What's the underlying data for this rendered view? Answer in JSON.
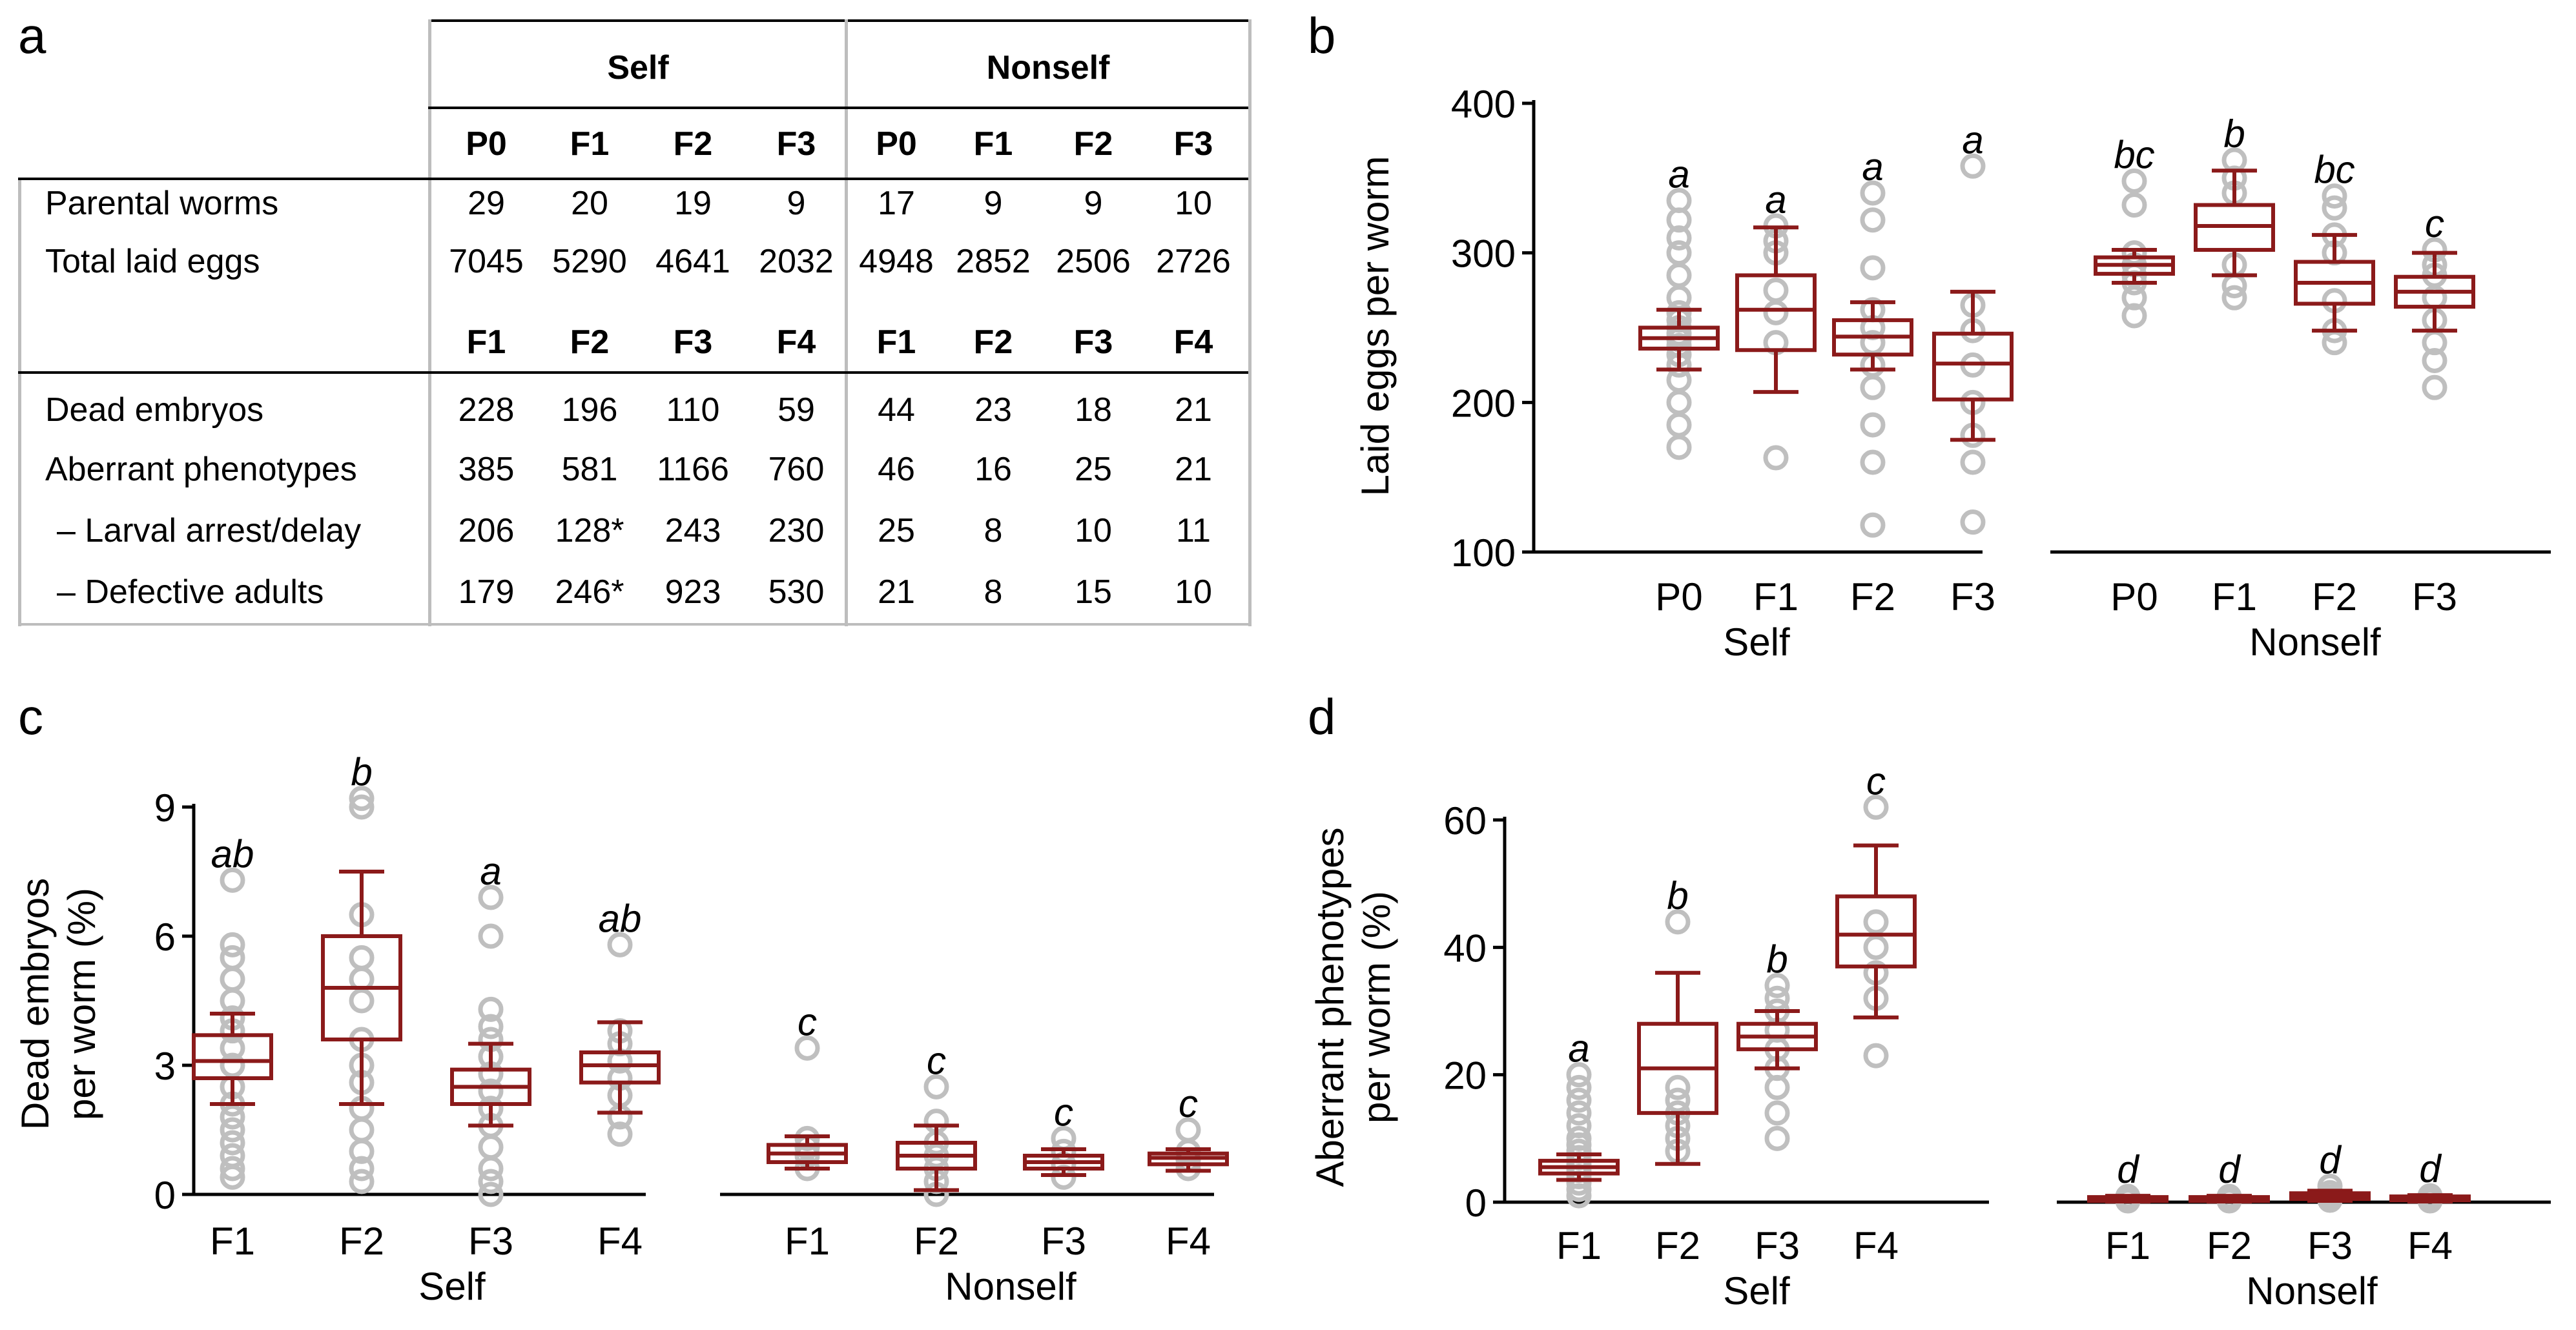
{
  "panels": {
    "a": "a",
    "b": "b",
    "c": "c",
    "d": "d"
  },
  "table": {
    "groups": [
      "Self",
      "Nonself"
    ],
    "gen_header_1": [
      "P0",
      "F1",
      "F2",
      "F3",
      "P0",
      "F1",
      "F2",
      "F3"
    ],
    "gen_header_2": [
      "F1",
      "F2",
      "F3",
      "F4",
      "F1",
      "F2",
      "F3",
      "F4"
    ],
    "rows_top": [
      {
        "label": "Parental worms",
        "values": [
          "29",
          "20",
          "19",
          "9",
          "17",
          "9",
          "9",
          "10"
        ]
      },
      {
        "label": "Total laid eggs",
        "values": [
          "7045",
          "5290",
          "4641",
          "2032",
          "4948",
          "2852",
          "2506",
          "2726"
        ]
      }
    ],
    "rows_bottom": [
      {
        "label": "Dead embryos",
        "values": [
          "228",
          "196",
          "110",
          "59",
          "44",
          "23",
          "18",
          "21"
        ]
      },
      {
        "label": "Aberrant phenotypes",
        "values": [
          "385",
          "581",
          "1166",
          "760",
          "46",
          "16",
          "25",
          "21"
        ]
      },
      {
        "label": "–  Larval arrest/delay",
        "values": [
          "206",
          "128*",
          "243",
          "230",
          "25",
          "8",
          "10",
          "11"
        ]
      },
      {
        "label": "–  Defective adults",
        "values": [
          "179",
          "246*",
          "923",
          "530",
          "21",
          "8",
          "15",
          "10"
        ]
      }
    ]
  },
  "colors": {
    "box": "#8b1a1a",
    "points": "#bfbfbf",
    "axis": "#000000",
    "table_rule": "#bdbdbd"
  },
  "chart_data": [
    {
      "type": "boxplot",
      "panel": "b",
      "ylabel": "Laid eggs per worm",
      "ylim": [
        100,
        400
      ],
      "yticks": [
        100,
        200,
        300,
        400
      ],
      "groups": [
        {
          "name": "Self",
          "categories": [
            "P0",
            "F1",
            "F2",
            "F3"
          ],
          "boxes": [
            {
              "q1": 236,
              "median": 243,
              "q3": 250,
              "whisker_low": 222,
              "whisker_high": 262,
              "letter": "a",
              "points": [
                170,
                185,
                200,
                215,
                225,
                232,
                238,
                242,
                246,
                250,
                255,
                260,
                270,
                285,
                300,
                310,
                322,
                335
              ]
            },
            {
              "q1": 235,
              "median": 262,
              "q3": 285,
              "whisker_low": 207,
              "whisker_high": 317,
              "letter": "a",
              "points": [
                163,
                240,
                260,
                275,
                300,
                308,
                318
              ]
            },
            {
              "q1": 232,
              "median": 244,
              "q3": 255,
              "whisker_low": 222,
              "whisker_high": 267,
              "letter": "a",
              "points": [
                118,
                160,
                185,
                210,
                225,
                240,
                250,
                262,
                290,
                322,
                340
              ]
            },
            {
              "q1": 202,
              "median": 226,
              "q3": 246,
              "whisker_low": 175,
              "whisker_high": 274,
              "letter": "a",
              "points": [
                120,
                160,
                178,
                200,
                225,
                248,
                265,
                358
              ]
            }
          ]
        },
        {
          "name": "Nonself",
          "categories": [
            "P0",
            "F1",
            "F2",
            "F3"
          ],
          "boxes": [
            {
              "q1": 286,
              "median": 292,
              "q3": 297,
              "whisker_low": 280,
              "whisker_high": 302,
              "letter": "bc",
              "points": [
                258,
                270,
                280,
                285,
                292,
                300,
                332,
                348
              ]
            },
            {
              "q1": 302,
              "median": 318,
              "q3": 332,
              "whisker_low": 285,
              "whisker_high": 355,
              "letter": "b",
              "points": [
                270,
                278,
                292,
                340,
                350,
                362
              ]
            },
            {
              "q1": 266,
              "median": 280,
              "q3": 294,
              "whisker_low": 248,
              "whisker_high": 312,
              "letter": "bc",
              "points": [
                240,
                248,
                268,
                300,
                312,
                330,
                338
              ]
            },
            {
              "q1": 264,
              "median": 274,
              "q3": 284,
              "whisker_low": 248,
              "whisker_high": 300,
              "letter": "c",
              "points": [
                210,
                228,
                240,
                255,
                270,
                285,
                292,
                302
              ]
            }
          ]
        }
      ],
      "group_labels": [
        "Self",
        "Nonself"
      ]
    },
    {
      "type": "boxplot",
      "panel": "c",
      "ylabel": [
        "Dead embryos",
        "per worm (%)"
      ],
      "ylim": [
        0,
        9
      ],
      "yticks": [
        0,
        3,
        6,
        9
      ],
      "groups": [
        {
          "name": "Self",
          "categories": [
            "F1",
            "F2",
            "F3",
            "F4"
          ],
          "boxes": [
            {
              "q1": 2.7,
              "median": 3.1,
              "q3": 3.7,
              "whisker_low": 2.1,
              "whisker_high": 4.2,
              "letter": "ab",
              "points": [
                0.4,
                0.6,
                0.9,
                1.2,
                1.5,
                1.8,
                2.1,
                2.5,
                3.0,
                3.4,
                3.8,
                4.1,
                4.5,
                5.0,
                5.5,
                5.8,
                7.3
              ]
            },
            {
              "q1": 3.6,
              "median": 4.8,
              "q3": 6.0,
              "whisker_low": 2.1,
              "whisker_high": 7.5,
              "letter": "b",
              "points": [
                0.3,
                0.6,
                1.0,
                1.5,
                2.0,
                2.6,
                3.0,
                3.6,
                4.5,
                5.0,
                5.5,
                6.5,
                9.0,
                9.2
              ]
            },
            {
              "q1": 2.1,
              "median": 2.5,
              "q3": 2.9,
              "whisker_low": 1.6,
              "whisker_high": 3.5,
              "letter": "a",
              "points": [
                0.0,
                0.3,
                0.6,
                1.1,
                1.6,
                2.0,
                2.4,
                2.8,
                3.2,
                3.6,
                3.9,
                4.3,
                6.0,
                6.9
              ]
            },
            {
              "q1": 2.6,
              "median": 3.0,
              "q3": 3.3,
              "whisker_low": 1.9,
              "whisker_high": 4.0,
              "letter": "ab",
              "points": [
                1.4,
                1.8,
                2.3,
                2.7,
                3.1,
                3.5,
                3.8,
                5.8
              ]
            }
          ]
        },
        {
          "name": "Nonself",
          "categories": [
            "F1",
            "F2",
            "F3",
            "F4"
          ],
          "boxes": [
            {
              "q1": 0.75,
              "median": 0.95,
              "q3": 1.15,
              "whisker_low": 0.6,
              "whisker_high": 1.35,
              "letter": "c",
              "points": [
                0.6,
                0.9,
                1.1,
                1.3,
                3.4
              ]
            },
            {
              "q1": 0.6,
              "median": 0.9,
              "q3": 1.2,
              "whisker_low": 0.1,
              "whisker_high": 1.6,
              "letter": "c",
              "points": [
                0.0,
                0.3,
                0.6,
                0.9,
                1.2,
                1.7,
                2.5
              ]
            },
            {
              "q1": 0.6,
              "median": 0.75,
              "q3": 0.9,
              "whisker_low": 0.45,
              "whisker_high": 1.05,
              "letter": "c",
              "points": [
                0.4,
                0.7,
                1.0,
                1.3
              ]
            },
            {
              "q1": 0.7,
              "median": 0.85,
              "q3": 0.95,
              "whisker_low": 0.55,
              "whisker_high": 1.05,
              "letter": "c",
              "points": [
                0.6,
                0.8,
                1.0,
                1.5
              ]
            }
          ]
        }
      ],
      "group_labels": [
        "Self",
        "Nonself"
      ]
    },
    {
      "type": "boxplot",
      "panel": "d",
      "ylabel": [
        "Aberrant phenotypes",
        "per worm (%)"
      ],
      "ylim": [
        0,
        60
      ],
      "yticks": [
        0,
        20,
        40,
        60
      ],
      "groups": [
        {
          "name": "Self",
          "categories": [
            "F1",
            "F2",
            "F3",
            "F4"
          ],
          "boxes": [
            {
              "q1": 4.5,
              "median": 5.5,
              "q3": 6.5,
              "whisker_low": 3.5,
              "whisker_high": 7.5,
              "letter": "a",
              "points": [
                1,
                2,
                3,
                4,
                5,
                6,
                7,
                8,
                9,
                10,
                12,
                14,
                16,
                18,
                20
              ]
            },
            {
              "q1": 14,
              "median": 21,
              "q3": 28,
              "whisker_low": 6,
              "whisker_high": 36,
              "letter": "b",
              "points": [
                8,
                10,
                12,
                14,
                16,
                18,
                44
              ]
            },
            {
              "q1": 24,
              "median": 26,
              "q3": 28,
              "whisker_low": 21,
              "whisker_high": 30,
              "letter": "b",
              "points": [
                10,
                14,
                18,
                21,
                24,
                27,
                30,
                32,
                34
              ]
            },
            {
              "q1": 37,
              "median": 42,
              "q3": 48,
              "whisker_low": 29,
              "whisker_high": 56,
              "letter": "c",
              "points": [
                23,
                32,
                36,
                40,
                44,
                62
              ]
            }
          ]
        },
        {
          "name": "Nonself",
          "categories": [
            "F1",
            "F2",
            "F3",
            "F4"
          ],
          "boxes": [
            {
              "q1": 0.3,
              "median": 0.5,
              "q3": 0.8,
              "whisker_low": 0.1,
              "whisker_high": 1.0,
              "letter": "d",
              "points": [
                0.2,
                0.5,
                0.9
              ]
            },
            {
              "q1": 0.3,
              "median": 0.5,
              "q3": 0.8,
              "whisker_low": 0.1,
              "whisker_high": 1.0,
              "letter": "d",
              "points": [
                0.2,
                0.5,
                0.9
              ]
            },
            {
              "q1": 0.5,
              "median": 0.9,
              "q3": 1.4,
              "whisker_low": 0.2,
              "whisker_high": 1.8,
              "letter": "d",
              "points": [
                0.3,
                0.8,
                1.5,
                2.5
              ]
            },
            {
              "q1": 0.3,
              "median": 0.6,
              "q3": 0.9,
              "whisker_low": 0.1,
              "whisker_high": 1.1,
              "letter": "d",
              "points": [
                0.2,
                0.6,
                1.0
              ]
            }
          ]
        }
      ],
      "group_labels": [
        "Self",
        "Nonself"
      ]
    }
  ]
}
